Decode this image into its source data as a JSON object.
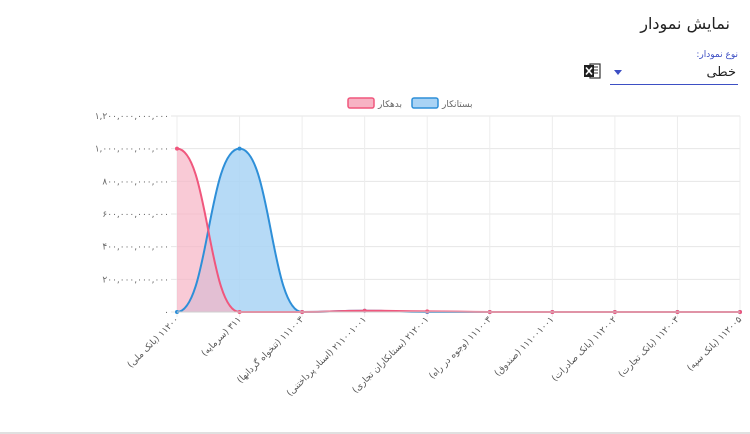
{
  "page": {
    "title": "نمایش نمودار"
  },
  "chart_type_select": {
    "label": "نوع نمودار:",
    "value": "خطی"
  },
  "colors": {
    "creditor_line": "#2e8fd8",
    "creditor_fill": "#a9d3f5",
    "debtor_line": "#f0577d",
    "debtor_fill": "#f7b3c4"
  },
  "chart_data": {
    "type": "area",
    "legend_position": "top",
    "categories": [
      "(بانک ملی) ۱۱۲۰۰",
      "(سرمایه) ۳۱۱",
      "(تنخواه گردانها) ۱۱۱۰۰۳",
      "(اسناد پرداختنی) ۲۱۱۰۰۱۰۰۱",
      "(بستانکاران تجاری) ۲۱۲۰۰۱",
      "(وجوه در راه) ۱۱۱۰۰۳",
      "(صندوق) ۱۱۱۰۰۱۰۰۱",
      "(بانک صادرات) ۱۱۲۰۰۲",
      "(بانک تجارت) ۱۱۲۰۰۳",
      "(بانک سپه) ۱۱۲۰۰۵"
    ],
    "series": [
      {
        "name": "بستانکار",
        "values": [
          0,
          1000000000000,
          0,
          8000000000,
          0,
          0,
          0,
          0,
          0,
          0
        ]
      },
      {
        "name": "بدهکار",
        "values": [
          1000000000000,
          0,
          0,
          8000000000,
          4000000000,
          0,
          0,
          0,
          0,
          0
        ]
      }
    ],
    "ylim": [
      0,
      1200000000000
    ],
    "yticks": [
      {
        "v": 0,
        "label": "۰"
      },
      {
        "v": 200000000000,
        "label": "۲۰۰,۰۰۰,۰۰۰,۰۰۰"
      },
      {
        "v": 400000000000,
        "label": "۴۰۰,۰۰۰,۰۰۰,۰۰۰"
      },
      {
        "v": 600000000000,
        "label": "۶۰۰,۰۰۰,۰۰۰,۰۰۰"
      },
      {
        "v": 800000000000,
        "label": "۸۰۰,۰۰۰,۰۰۰,۰۰۰"
      },
      {
        "v": 1000000000000,
        "label": "۱,۰۰۰,۰۰۰,۰۰۰,۰۰۰"
      },
      {
        "v": 1200000000000,
        "label": "۱,۲۰۰,۰۰۰,۰۰۰,۰۰۰"
      }
    ],
    "grid": true
  }
}
